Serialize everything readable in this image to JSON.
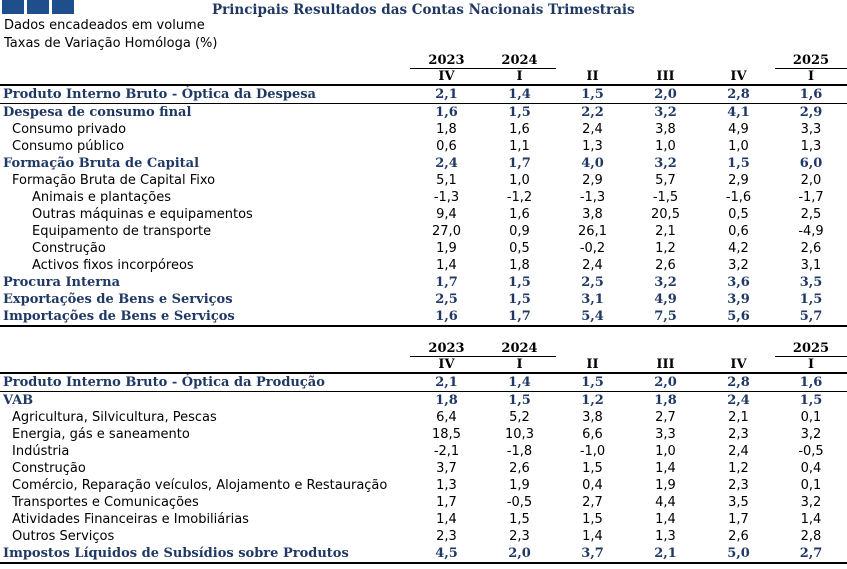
{
  "header": {
    "title": "Principais Resultados das Contas Nacionais Trimestrais",
    "subtitle1": "Dados encadeados em volume",
    "subtitle2": "Taxas de Variação Homóloga (%)"
  },
  "columns": {
    "years": [
      "2023",
      "2024",
      "",
      "",
      "",
      "2025"
    ],
    "quarters": [
      "IV",
      "I",
      "II",
      "III",
      "IV",
      "I"
    ]
  },
  "table1": {
    "rows": [
      {
        "label": "Produto Interno Bruto - Óptica da Despesa",
        "values": [
          "2,1",
          "1,4",
          "1,5",
          "2,0",
          "2,8",
          "1,6"
        ]
      },
      {
        "label": "Despesa de consumo final",
        "values": [
          "1,6",
          "1,5",
          "2,2",
          "3,2",
          "4,1",
          "2,9"
        ]
      },
      {
        "label": "Consumo privado",
        "values": [
          "1,8",
          "1,6",
          "2,4",
          "3,8",
          "4,9",
          "3,3"
        ]
      },
      {
        "label": "Consumo público",
        "values": [
          "0,6",
          "1,1",
          "1,3",
          "1,0",
          "1,0",
          "1,3"
        ]
      },
      {
        "label": "Formação Bruta de Capital",
        "values": [
          "2,4",
          "1,7",
          "4,0",
          "3,2",
          "1,5",
          "6,0"
        ]
      },
      {
        "label": "Formação Bruta de Capital Fixo",
        "values": [
          "5,1",
          "1,0",
          "2,9",
          "5,7",
          "2,9",
          "2,0"
        ]
      },
      {
        "label": "Animais e plantações",
        "values": [
          "-1,3",
          "-1,2",
          "-1,3",
          "-1,5",
          "-1,6",
          "-1,7"
        ]
      },
      {
        "label": "Outras máquinas e equipamentos",
        "values": [
          "9,4",
          "1,6",
          "3,8",
          "20,5",
          "0,5",
          "2,5"
        ]
      },
      {
        "label": "Equipamento de transporte",
        "values": [
          "27,0",
          "0,9",
          "26,1",
          "2,1",
          "0,6",
          "-4,9"
        ]
      },
      {
        "label": "Construção",
        "values": [
          "1,9",
          "0,5",
          "-0,2",
          "1,2",
          "4,2",
          "2,6"
        ]
      },
      {
        "label": "Activos fixos incorpóreos",
        "values": [
          "1,4",
          "1,8",
          "2,4",
          "2,6",
          "3,2",
          "3,1"
        ]
      },
      {
        "label": "Procura Interna",
        "values": [
          "1,7",
          "1,5",
          "2,5",
          "3,2",
          "3,6",
          "3,5"
        ]
      },
      {
        "label": "Exportações de Bens e Serviços",
        "values": [
          "2,5",
          "1,5",
          "3,1",
          "4,9",
          "3,9",
          "1,5"
        ]
      },
      {
        "label": "Importações de Bens e Serviços",
        "values": [
          "1,6",
          "1,7",
          "5,4",
          "7,5",
          "5,6",
          "5,7"
        ]
      }
    ]
  },
  "table2": {
    "rows": [
      {
        "label": "Produto Interno Bruto - Óptica da Produção",
        "values": [
          "2,1",
          "1,4",
          "1,5",
          "2,0",
          "2,8",
          "1,6"
        ]
      },
      {
        "label": "VAB",
        "values": [
          "1,8",
          "1,5",
          "1,2",
          "1,8",
          "2,4",
          "1,5"
        ]
      },
      {
        "label": "Agricultura, Silvicultura, Pescas",
        "values": [
          "6,4",
          "5,2",
          "3,8",
          "2,7",
          "2,1",
          "0,1"
        ]
      },
      {
        "label": "Energia, gás e saneamento",
        "values": [
          "18,5",
          "10,3",
          "6,6",
          "3,3",
          "2,3",
          "3,2"
        ]
      },
      {
        "label": "Indústria",
        "values": [
          "-2,1",
          "-1,8",
          "-1,0",
          "1,0",
          "2,4",
          "-0,5"
        ]
      },
      {
        "label": "Construção",
        "values": [
          "3,7",
          "2,6",
          "1,5",
          "1,4",
          "1,2",
          "0,4"
        ]
      },
      {
        "label": "Comércio, Reparação veículos, Alojamento e Restauração",
        "values": [
          "1,3",
          "1,9",
          "0,4",
          "1,9",
          "2,3",
          "0,1"
        ]
      },
      {
        "label": "Transportes e Comunicações",
        "values": [
          "1,7",
          "-0,5",
          "2,7",
          "4,4",
          "3,5",
          "3,2"
        ]
      },
      {
        "label": "Atividades Financeiras e Imobiliárias",
        "values": [
          "1,4",
          "1,5",
          "1,5",
          "1,4",
          "1,7",
          "1,4"
        ]
      },
      {
        "label": "Outros Serviços",
        "values": [
          "2,3",
          "2,3",
          "1,4",
          "1,3",
          "2,6",
          "2,8"
        ]
      },
      {
        "label": "Impostos Líquidos de Subsídios sobre Produtos",
        "values": [
          "4,5",
          "2,0",
          "3,7",
          "2,1",
          "5,0",
          "2,7"
        ]
      }
    ]
  },
  "colors": {
    "heading": "#1f3864",
    "logo": "#1f4e8c"
  }
}
